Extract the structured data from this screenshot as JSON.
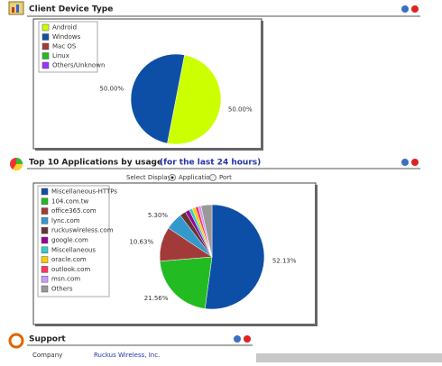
{
  "client_device": {
    "title": "Client Device Type",
    "chart": {
      "type": "pie",
      "categories": [
        "Android",
        "Windows",
        "Mac OS",
        "Linux",
        "Others/Unknown"
      ],
      "values": [
        50,
        50,
        0,
        0,
        0
      ],
      "value_labels": [
        "50.00%",
        "50.00%",
        null,
        null,
        null
      ],
      "colors": [
        "#ccff00",
        "#0d4fa6",
        "#a33a3a",
        "#22bb22",
        "#9933ff"
      ]
    }
  },
  "top_apps": {
    "title": "Top 10 Applications by usage",
    "period": "(for the last 24 hours)",
    "select_label": "Select Display:",
    "options": [
      "Application",
      "Port"
    ],
    "chart": {
      "type": "pie",
      "categories": [
        "Miscellaneous-HTTPs",
        "104.com.tw",
        "office365.com",
        "lync.com",
        "ruckuswireless.com",
        "google.com",
        "Miscellaneous",
        "oracle.com",
        "outlook.com",
        "msn.com",
        "Others"
      ],
      "values": [
        52.13,
        21.56,
        10.63,
        5.3,
        1.9,
        1.3,
        1.0,
        1.0,
        0.9,
        0.9,
        3.38
      ],
      "value_labels": [
        "52.13%",
        "21.56%",
        "10.63%",
        "5.30%",
        null,
        null,
        null,
        null,
        null,
        null,
        null
      ],
      "colors": [
        "#0d4fa6",
        "#22bb22",
        "#a33a3a",
        "#3399cc",
        "#663333",
        "#990099",
        "#33cccc",
        "#ffcc00",
        "#ff3366",
        "#cc99ff",
        "#999999"
      ]
    }
  },
  "support": {
    "title": "Support",
    "rows": [
      [
        "Company",
        "Ruckus Wireless, Inc."
      ]
    ]
  }
}
